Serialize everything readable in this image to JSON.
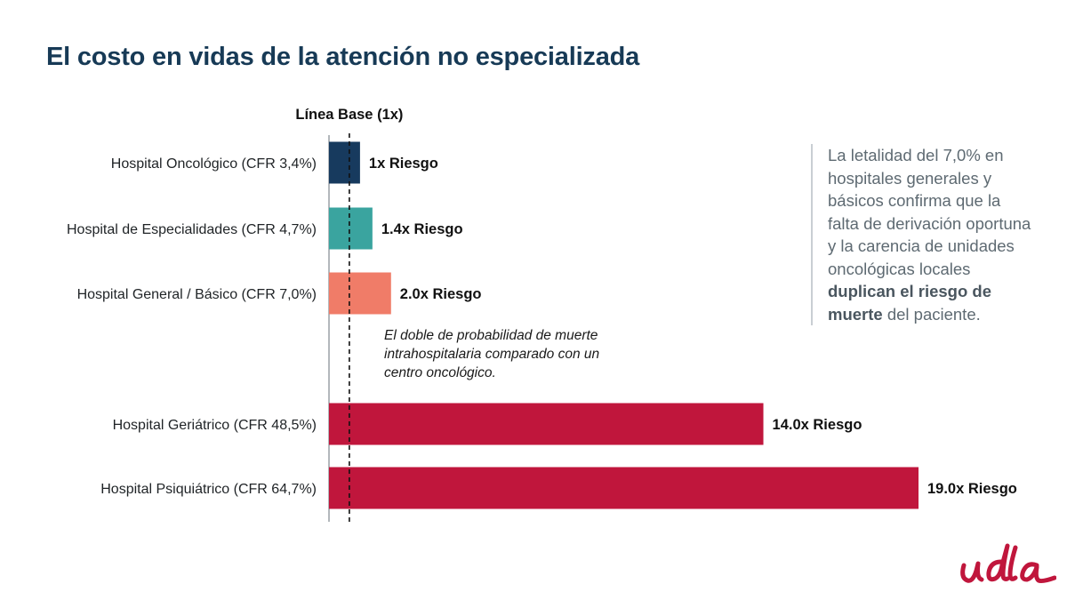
{
  "title": "El costo en vidas de la atención no especializada",
  "colors": {
    "title": "#173a56",
    "navy": "#173a5e",
    "teal": "#3aa49f",
    "coral": "#f07c68",
    "crimson": "#c0163c",
    "note_text": "#5e6a72",
    "logo": "#c0163c"
  },
  "chart_data": {
    "type": "bar",
    "orientation": "horizontal",
    "title": "El costo en vidas de la atención no especializada",
    "xlabel": "",
    "ylabel": "",
    "xlim": [
      0,
      19.5
    ],
    "grid": false,
    "legend": "none",
    "categories": [
      "Hospital Oncológico (CFR 3,4%)",
      "Hospital de Especialidades (CFR 4,7%)",
      "Hospital General / Básico (CFR 7,0%)",
      "Hospital Geriátrico (CFR 48,5%)",
      "Hospital Psiquiátrico (CFR 64,7%)"
    ],
    "values": [
      1.0,
      1.4,
      2.0,
      14.0,
      19.0
    ],
    "value_labels": [
      "1x Riesgo",
      "1.4x Riesgo",
      "2.0x Riesgo",
      "14.0x Riesgo",
      "19.0x Riesgo"
    ],
    "bar_colors": [
      "#173a5e",
      "#3aa49f",
      "#f07c68",
      "#c0163c",
      "#c0163c"
    ],
    "baseline": {
      "value": 1.0,
      "label": "Línea Base (1x)"
    },
    "annotation": "El doble de probabilidad de muerte intrahospitalaria comparado con un centro oncológico."
  },
  "annotation_lines": [
    "El doble de probabilidad de muerte",
    "intrahospitalaria comparado con un",
    "centro oncológico."
  ],
  "side_note": {
    "text_start": "La letalidad del 7,0% en hospitales generales y básicos confirma que la falta de derivación oportuna y la carencia de unidades oncológicas locales ",
    "bold": "duplican el riesgo de muerte",
    "text_end": " del paciente."
  },
  "logo": {
    "text": "udla",
    "icon": "udla-logo"
  }
}
